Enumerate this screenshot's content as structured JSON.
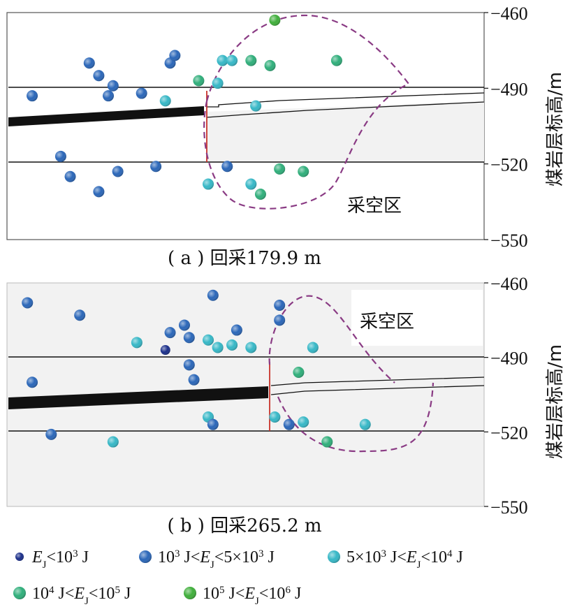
{
  "colors": {
    "class1": "#1b2f8a",
    "class2": "#2a66b8",
    "class3": "#36b7c6",
    "class4": "#2fae7a",
    "class5": "#3fae3a",
    "dashed_region": "#7b2f6e",
    "cut_line": "#c8322a",
    "seam_line": "#111111",
    "goaf_fill": "#f2f2f2"
  },
  "legend": [
    {
      "label": "E_J<10^3 J",
      "color_key": "class1",
      "icon": "dot-icon"
    },
    {
      "label": "10^3 J<E_J<5×10^3 J",
      "color_key": "class2",
      "icon": "dot-icon"
    },
    {
      "label": "5×10^3 J<E_J<10^4 J",
      "color_key": "class3",
      "icon": "dot-icon"
    },
    {
      "label": "10^4 J<E_J<10^5 J",
      "color_key": "class4",
      "icon": "dot-icon"
    },
    {
      "label": "10^5 J<E_J<10^6 J",
      "color_key": "class5",
      "icon": "dot-icon"
    }
  ],
  "chart_data": [
    {
      "type": "scatter",
      "caption": "( a ) 回采179.9 m",
      "ylabel": "煤岩层标高/m",
      "yticks": [
        -460,
        -490,
        -520,
        -550
      ],
      "ylim": [
        -550,
        -460
      ],
      "region_label": "采空区",
      "points": [
        {
          "x": 0.05,
          "y": -493,
          "c": 2
        },
        {
          "x": 0.17,
          "y": -480,
          "c": 2
        },
        {
          "x": 0.19,
          "y": -485,
          "c": 2
        },
        {
          "x": 0.21,
          "y": -493,
          "c": 2
        },
        {
          "x": 0.22,
          "y": -489,
          "c": 2
        },
        {
          "x": 0.28,
          "y": -492,
          "c": 2
        },
        {
          "x": 0.34,
          "y": -480,
          "c": 2
        },
        {
          "x": 0.35,
          "y": -477,
          "c": 2
        },
        {
          "x": 0.33,
          "y": -495,
          "c": 3
        },
        {
          "x": 0.11,
          "y": -517,
          "c": 2
        },
        {
          "x": 0.13,
          "y": -525,
          "c": 2
        },
        {
          "x": 0.19,
          "y": -531,
          "c": 2
        },
        {
          "x": 0.23,
          "y": -523,
          "c": 2
        },
        {
          "x": 0.31,
          "y": -521,
          "c": 2
        },
        {
          "x": 0.46,
          "y": -521,
          "c": 2
        },
        {
          "x": 0.52,
          "y": -497,
          "c": 3
        },
        {
          "x": 0.45,
          "y": -479,
          "c": 3
        },
        {
          "x": 0.47,
          "y": -479,
          "c": 3
        },
        {
          "x": 0.44,
          "y": -488,
          "c": 3
        },
        {
          "x": 0.42,
          "y": -528,
          "c": 3
        },
        {
          "x": 0.51,
          "y": -528,
          "c": 3
        },
        {
          "x": 0.53,
          "y": -532,
          "c": 4
        },
        {
          "x": 0.4,
          "y": -487,
          "c": 4
        },
        {
          "x": 0.51,
          "y": -479,
          "c": 4
        },
        {
          "x": 0.55,
          "y": -481,
          "c": 4
        },
        {
          "x": 0.57,
          "y": -522,
          "c": 4
        },
        {
          "x": 0.62,
          "y": -523,
          "c": 4
        },
        {
          "x": 0.56,
          "y": -463,
          "c": 5
        },
        {
          "x": 0.69,
          "y": -479,
          "c": 4
        }
      ]
    },
    {
      "type": "scatter",
      "caption": "( b ) 回采265.2 m",
      "ylabel": "煤岩层标高/m",
      "yticks": [
        -460,
        -490,
        -520,
        -550
      ],
      "ylim": [
        -550,
        -460
      ],
      "region_label": "采空区",
      "points": [
        {
          "x": 0.04,
          "y": -468,
          "c": 2
        },
        {
          "x": 0.15,
          "y": -473,
          "c": 2
        },
        {
          "x": 0.43,
          "y": -465,
          "c": 2
        },
        {
          "x": 0.34,
          "y": -480,
          "c": 2
        },
        {
          "x": 0.37,
          "y": -477,
          "c": 2
        },
        {
          "x": 0.38,
          "y": -482,
          "c": 2
        },
        {
          "x": 0.33,
          "y": -487,
          "c": 1
        },
        {
          "x": 0.48,
          "y": -479,
          "c": 2
        },
        {
          "x": 0.38,
          "y": -493,
          "c": 2
        },
        {
          "x": 0.39,
          "y": -499,
          "c": 2
        },
        {
          "x": 0.05,
          "y": -500,
          "c": 2
        },
        {
          "x": 0.09,
          "y": -521,
          "c": 2
        },
        {
          "x": 0.27,
          "y": -484,
          "c": 3
        },
        {
          "x": 0.42,
          "y": -483,
          "c": 3
        },
        {
          "x": 0.44,
          "y": -486,
          "c": 3
        },
        {
          "x": 0.47,
          "y": -485,
          "c": 3
        },
        {
          "x": 0.51,
          "y": -486,
          "c": 3
        },
        {
          "x": 0.64,
          "y": -486,
          "c": 3
        },
        {
          "x": 0.42,
          "y": -514,
          "c": 3
        },
        {
          "x": 0.43,
          "y": -517,
          "c": 2
        },
        {
          "x": 0.22,
          "y": -524,
          "c": 3
        },
        {
          "x": 0.56,
          "y": -514,
          "c": 3
        },
        {
          "x": 0.59,
          "y": -517,
          "c": 2
        },
        {
          "x": 0.62,
          "y": -516,
          "c": 3
        },
        {
          "x": 0.75,
          "y": -517,
          "c": 3
        },
        {
          "x": 0.57,
          "y": -469,
          "c": 2
        },
        {
          "x": 0.57,
          "y": -475,
          "c": 2
        },
        {
          "x": 0.61,
          "y": -496,
          "c": 4
        },
        {
          "x": 0.67,
          "y": -524,
          "c": 4
        }
      ]
    }
  ]
}
